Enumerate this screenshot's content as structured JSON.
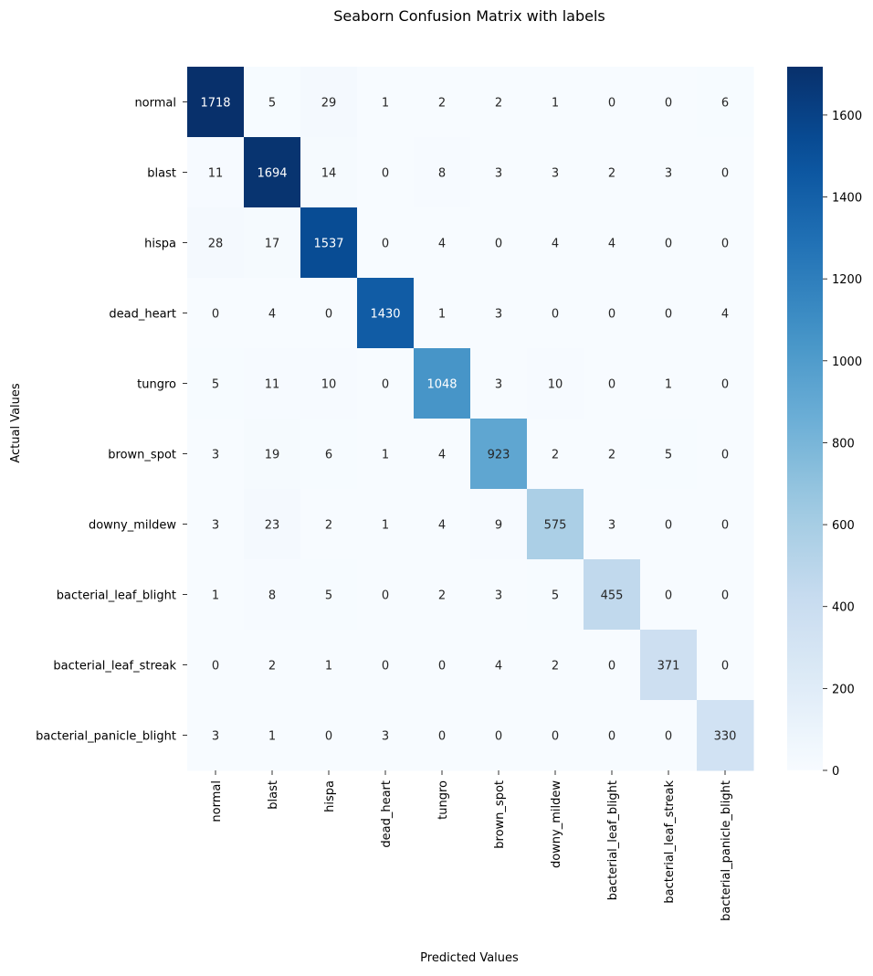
{
  "chart_data": {
    "type": "heatmap",
    "title": "Seaborn Confusion Matrix with labels",
    "xlabel": "Predicted Values",
    "ylabel": "Actual Values",
    "row_labels": [
      "normal",
      "blast",
      "hispa",
      "dead_heart",
      "tungro",
      "brown_spot",
      "downy_mildew",
      "bacterial_leaf_blight",
      "bacterial_leaf_streak",
      "bacterial_panicle_blight"
    ],
    "col_labels": [
      "normal",
      "blast",
      "hispa",
      "dead_heart",
      "tungro",
      "brown_spot",
      "downy_mildew",
      "bacterial_leaf_blight",
      "bacterial_leaf_streak",
      "bacterial_panicle_blight"
    ],
    "values": [
      [
        1718,
        5,
        29,
        1,
        2,
        2,
        1,
        0,
        0,
        6
      ],
      [
        11,
        1694,
        14,
        0,
        8,
        3,
        3,
        2,
        3,
        0
      ],
      [
        28,
        17,
        1537,
        0,
        4,
        0,
        4,
        4,
        0,
        0
      ],
      [
        0,
        4,
        0,
        1430,
        1,
        3,
        0,
        0,
        0,
        4
      ],
      [
        5,
        11,
        10,
        0,
        1048,
        3,
        10,
        0,
        1,
        0
      ],
      [
        3,
        19,
        6,
        1,
        4,
        923,
        2,
        2,
        5,
        0
      ],
      [
        3,
        23,
        2,
        1,
        4,
        9,
        575,
        3,
        0,
        0
      ],
      [
        1,
        8,
        5,
        0,
        2,
        3,
        5,
        455,
        0,
        0
      ],
      [
        0,
        2,
        1,
        0,
        0,
        4,
        2,
        0,
        371,
        0
      ],
      [
        3,
        1,
        0,
        3,
        0,
        0,
        0,
        0,
        0,
        330
      ]
    ],
    "colormap": "Blues",
    "colorbar": {
      "min": 0,
      "max": 1718,
      "ticks": [
        0,
        200,
        400,
        600,
        800,
        1000,
        1200,
        1400,
        1600
      ]
    },
    "grid": false,
    "legend": "none"
  }
}
